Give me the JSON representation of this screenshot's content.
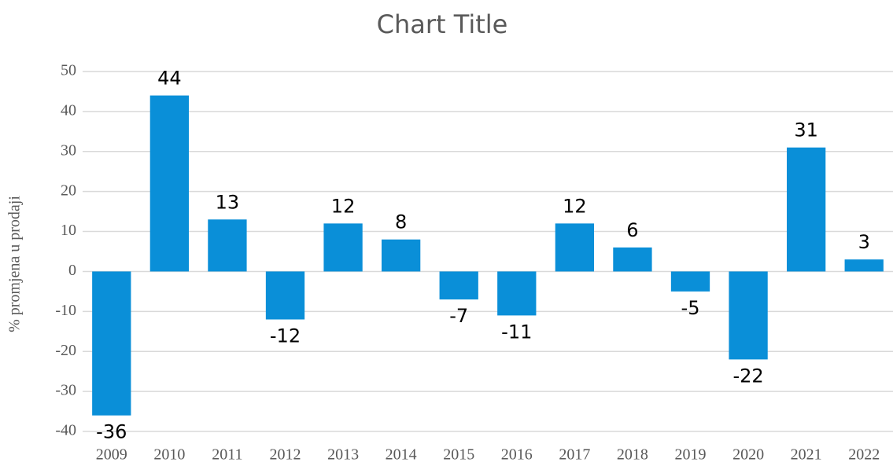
{
  "chart_data": {
    "type": "bar",
    "title": "Chart Title",
    "y_label": "% promjena u prodaji",
    "categories": [
      "2009",
      "2010",
      "2011",
      "2012",
      "2013",
      "2014",
      "2015",
      "2016",
      "2017",
      "2018",
      "2019",
      "2020",
      "2021",
      "2022"
    ],
    "values": [
      -36,
      44,
      13,
      -12,
      12,
      8,
      -7,
      -11,
      12,
      6,
      -5,
      -22,
      31,
      3
    ],
    "color": "#0a8fd8",
    "ylim": [
      -40,
      50
    ],
    "yticks": [
      -40,
      -30,
      -20,
      -10,
      0,
      10,
      20,
      30,
      40,
      50
    ],
    "grid": true
  }
}
